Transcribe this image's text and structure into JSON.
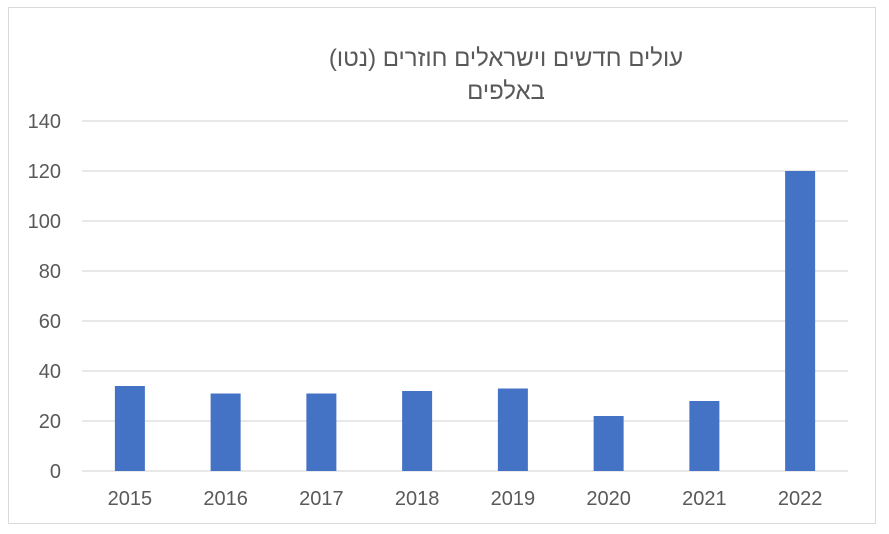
{
  "chart_data": {
    "type": "bar",
    "title_lines": [
      "עולים חדשים וישראלים חוזרים (נטו)",
      "באלפים"
    ],
    "categories": [
      "2015",
      "2016",
      "2017",
      "2018",
      "2019",
      "2020",
      "2021",
      "2022"
    ],
    "values": [
      34,
      31,
      31,
      32,
      33,
      22,
      28,
      120
    ],
    "yticks": [
      0,
      20,
      40,
      60,
      80,
      100,
      120,
      140
    ],
    "ylim": [
      0,
      140
    ],
    "grid": true,
    "legend": "none",
    "colors": {
      "bar": "#4472c4",
      "grid": "#d9d9d9",
      "text": "#595959"
    }
  }
}
